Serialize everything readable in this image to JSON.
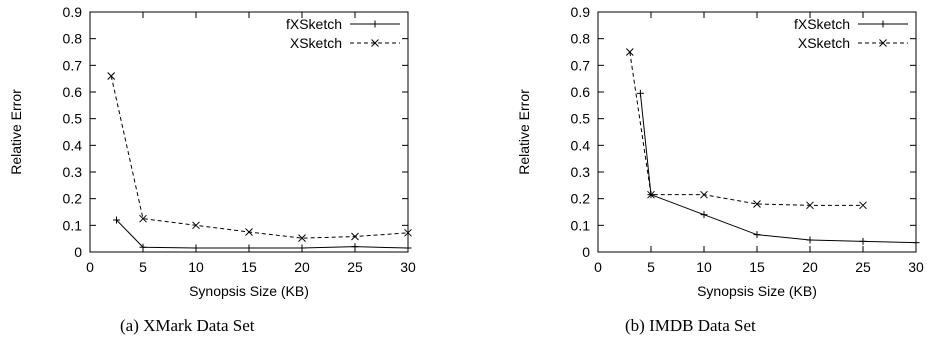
{
  "chart_data": [
    {
      "type": "line",
      "caption": "(a) XMark Data Set",
      "xlabel": "Synopsis Size (KB)",
      "ylabel": "Relative Error",
      "xlim": [
        0,
        30
      ],
      "ylim": [
        0,
        0.9
      ],
      "xticks": [
        "0",
        "5",
        "10",
        "15",
        "20",
        "25",
        "30"
      ],
      "yticks": [
        "0",
        "0.1",
        "0.2",
        "0.3",
        "0.4",
        "0.5",
        "0.6",
        "0.7",
        "0.8",
        "0.9"
      ],
      "grid": false,
      "legend_position": "top-right",
      "series": [
        {
          "name": "fXSketch",
          "style": "solid",
          "marker": "plus",
          "x": [
            2.5,
            5,
            10,
            15,
            20,
            25,
            30
          ],
          "y": [
            0.12,
            0.018,
            0.015,
            0.015,
            0.015,
            0.02,
            0.015
          ]
        },
        {
          "name": "XSketch",
          "style": "dashed",
          "marker": "cross",
          "x": [
            2,
            5,
            10,
            15,
            20,
            25,
            30
          ],
          "y": [
            0.66,
            0.125,
            0.1,
            0.075,
            0.052,
            0.058,
            0.072
          ]
        }
      ]
    },
    {
      "type": "line",
      "caption": "(b) IMDB Data Set",
      "xlabel": "Synopsis Size (KB)",
      "ylabel": "Relative Error",
      "xlim": [
        0,
        30
      ],
      "ylim": [
        0,
        0.9
      ],
      "xticks": [
        "0",
        "5",
        "10",
        "15",
        "20",
        "25",
        "30"
      ],
      "yticks": [
        "0",
        "0.1",
        "0.2",
        "0.3",
        "0.4",
        "0.5",
        "0.6",
        "0.7",
        "0.8",
        "0.9"
      ],
      "grid": false,
      "legend_position": "top-right",
      "series": [
        {
          "name": "fXSketch",
          "style": "solid",
          "marker": "plus",
          "x": [
            4,
            5,
            10,
            15,
            20,
            25,
            30
          ],
          "y": [
            0.595,
            0.215,
            0.14,
            0.065,
            0.045,
            0.04,
            0.035
          ]
        },
        {
          "name": "XSketch",
          "style": "dashed",
          "marker": "cross",
          "x": [
            3,
            5,
            10,
            15,
            20,
            25
          ],
          "y": [
            0.75,
            0.215,
            0.215,
            0.18,
            0.175,
            0.175
          ]
        }
      ]
    }
  ]
}
